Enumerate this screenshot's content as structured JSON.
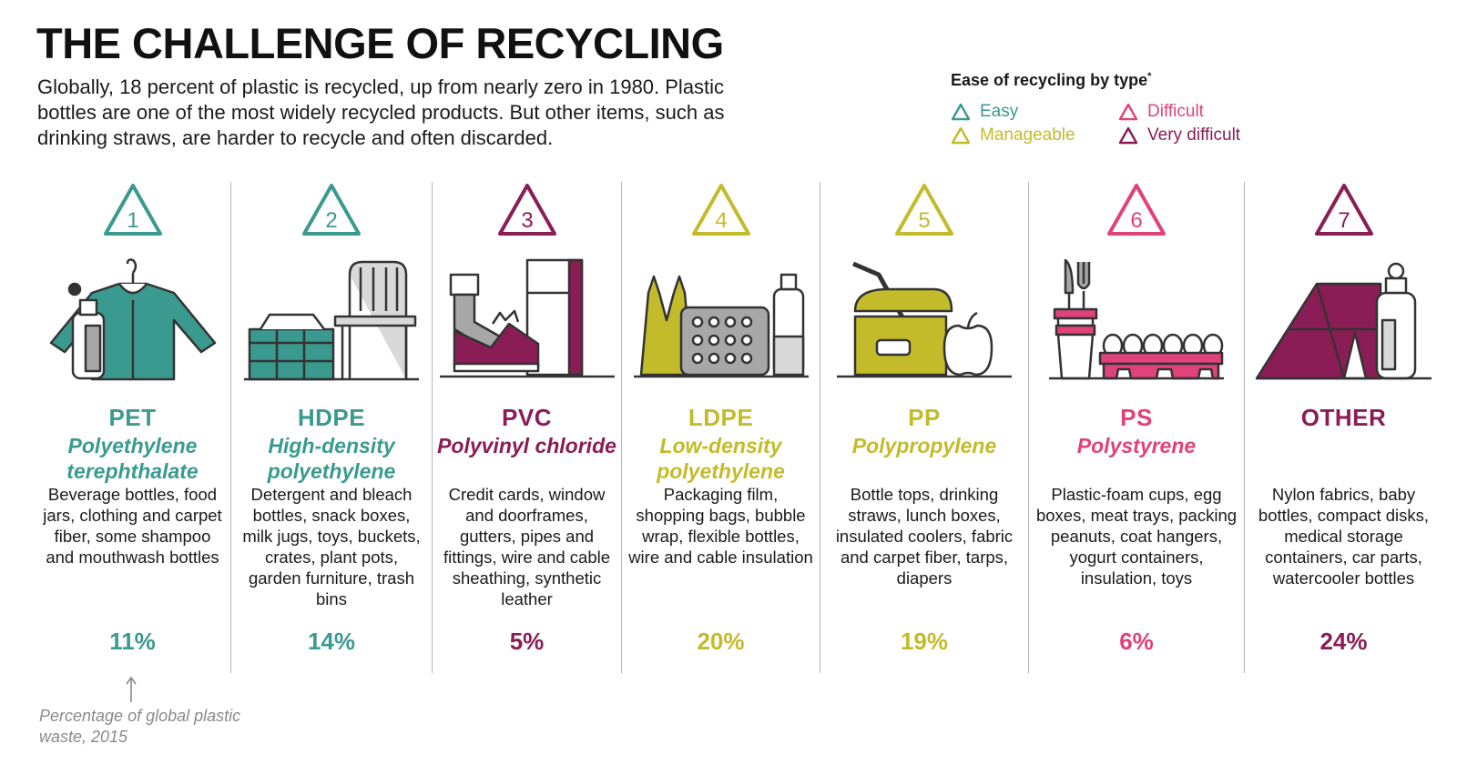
{
  "title": "THE CHALLENGE OF RECYCLING",
  "intro": "Globally, 18 percent of plastic is recycled, up from nearly zero in 1980. Plastic bottles are one of the most widely recycled products. But other items, such as drinking straws, are harder to recycle and often discarded.",
  "legend": {
    "title": "Ease of recycling by type",
    "footnote_mark": "*",
    "items": [
      {
        "label": "Easy",
        "color": "#3b9a8f"
      },
      {
        "label": "Difficult",
        "color": "#e0427a"
      },
      {
        "label": "Manageable",
        "color": "#c4bb2a"
      },
      {
        "label": "Very difficult",
        "color": "#8a1d55"
      }
    ]
  },
  "colors": {
    "easy": "#3b9a8f",
    "manageable": "#c4bb2a",
    "difficult": "#e0427a",
    "very_difficult": "#8a1d55",
    "gray": "#a7a7a7",
    "dark": "#333333"
  },
  "plastics": [
    {
      "code": "1",
      "abbr": "PET",
      "full": "Polyethylene terephthalate",
      "desc": "Beverage bottles, food jars, clothing and carpet fiber, some shampoo and mouthwash bottles",
      "pct": "11%",
      "color": "#3b9a8f",
      "ease": "Easy",
      "icon": "jacket-bottle-icon"
    },
    {
      "code": "2",
      "abbr": "HDPE",
      "full": "High-density polyethylene",
      "desc": "Detergent and bleach bottles, snack boxes, milk jugs, toys, buckets, crates, plant pots, garden furniture, trash bins",
      "pct": "14%",
      "color": "#3b9a8f",
      "ease": "Easy",
      "icon": "crate-chair-icon"
    },
    {
      "code": "3",
      "abbr": "PVC",
      "full": "Polyvinyl chloride",
      "desc": "Credit cards, window and doorframes, gutters, pipes and fittings, wire and cable sheathing, synthetic leather",
      "pct": "5%",
      "color": "#8a1d55",
      "ease": "Very difficult",
      "icon": "pipe-shoe-door-icon"
    },
    {
      "code": "4",
      "abbr": "LDPE",
      "full": "Low-density polyethylene",
      "desc": "Packaging film, shopping bags, bubble wrap, flexible bottles, wire and cable insulation",
      "pct": "20%",
      "color": "#c4bb2a",
      "ease": "Manageable",
      "icon": "bag-bubblewrap-icon"
    },
    {
      "code": "5",
      "abbr": "PP",
      "full": "Polypropylene",
      "desc": "Bottle tops, drinking straws, lunch boxes, insulated coolers, fabric and carpet fiber, tarps, diapers",
      "pct": "19%",
      "color": "#c4bb2a",
      "ease": "Manageable",
      "icon": "lunchbox-straw-apple-icon"
    },
    {
      "code": "6",
      "abbr": "PS",
      "full": "Polystyrene",
      "desc": "Plastic-foam cups, egg boxes, meat trays, packing peanuts, coat hangers, yogurt containers, insulation, toys",
      "pct": "6%",
      "color": "#e0427a",
      "ease": "Difficult",
      "icon": "cutlery-cups-eggbox-icon"
    },
    {
      "code": "7",
      "abbr": "OTHER",
      "full": "",
      "desc": "Nylon fabrics, baby bottles, compact disks, medical storage containers, car parts, watercooler bottles",
      "pct": "24%",
      "color": "#8a1d55",
      "ease": "Very difficult",
      "icon": "tent-bottle-icon"
    }
  ],
  "pct_note": "Percentage of global plastic waste, 2015"
}
